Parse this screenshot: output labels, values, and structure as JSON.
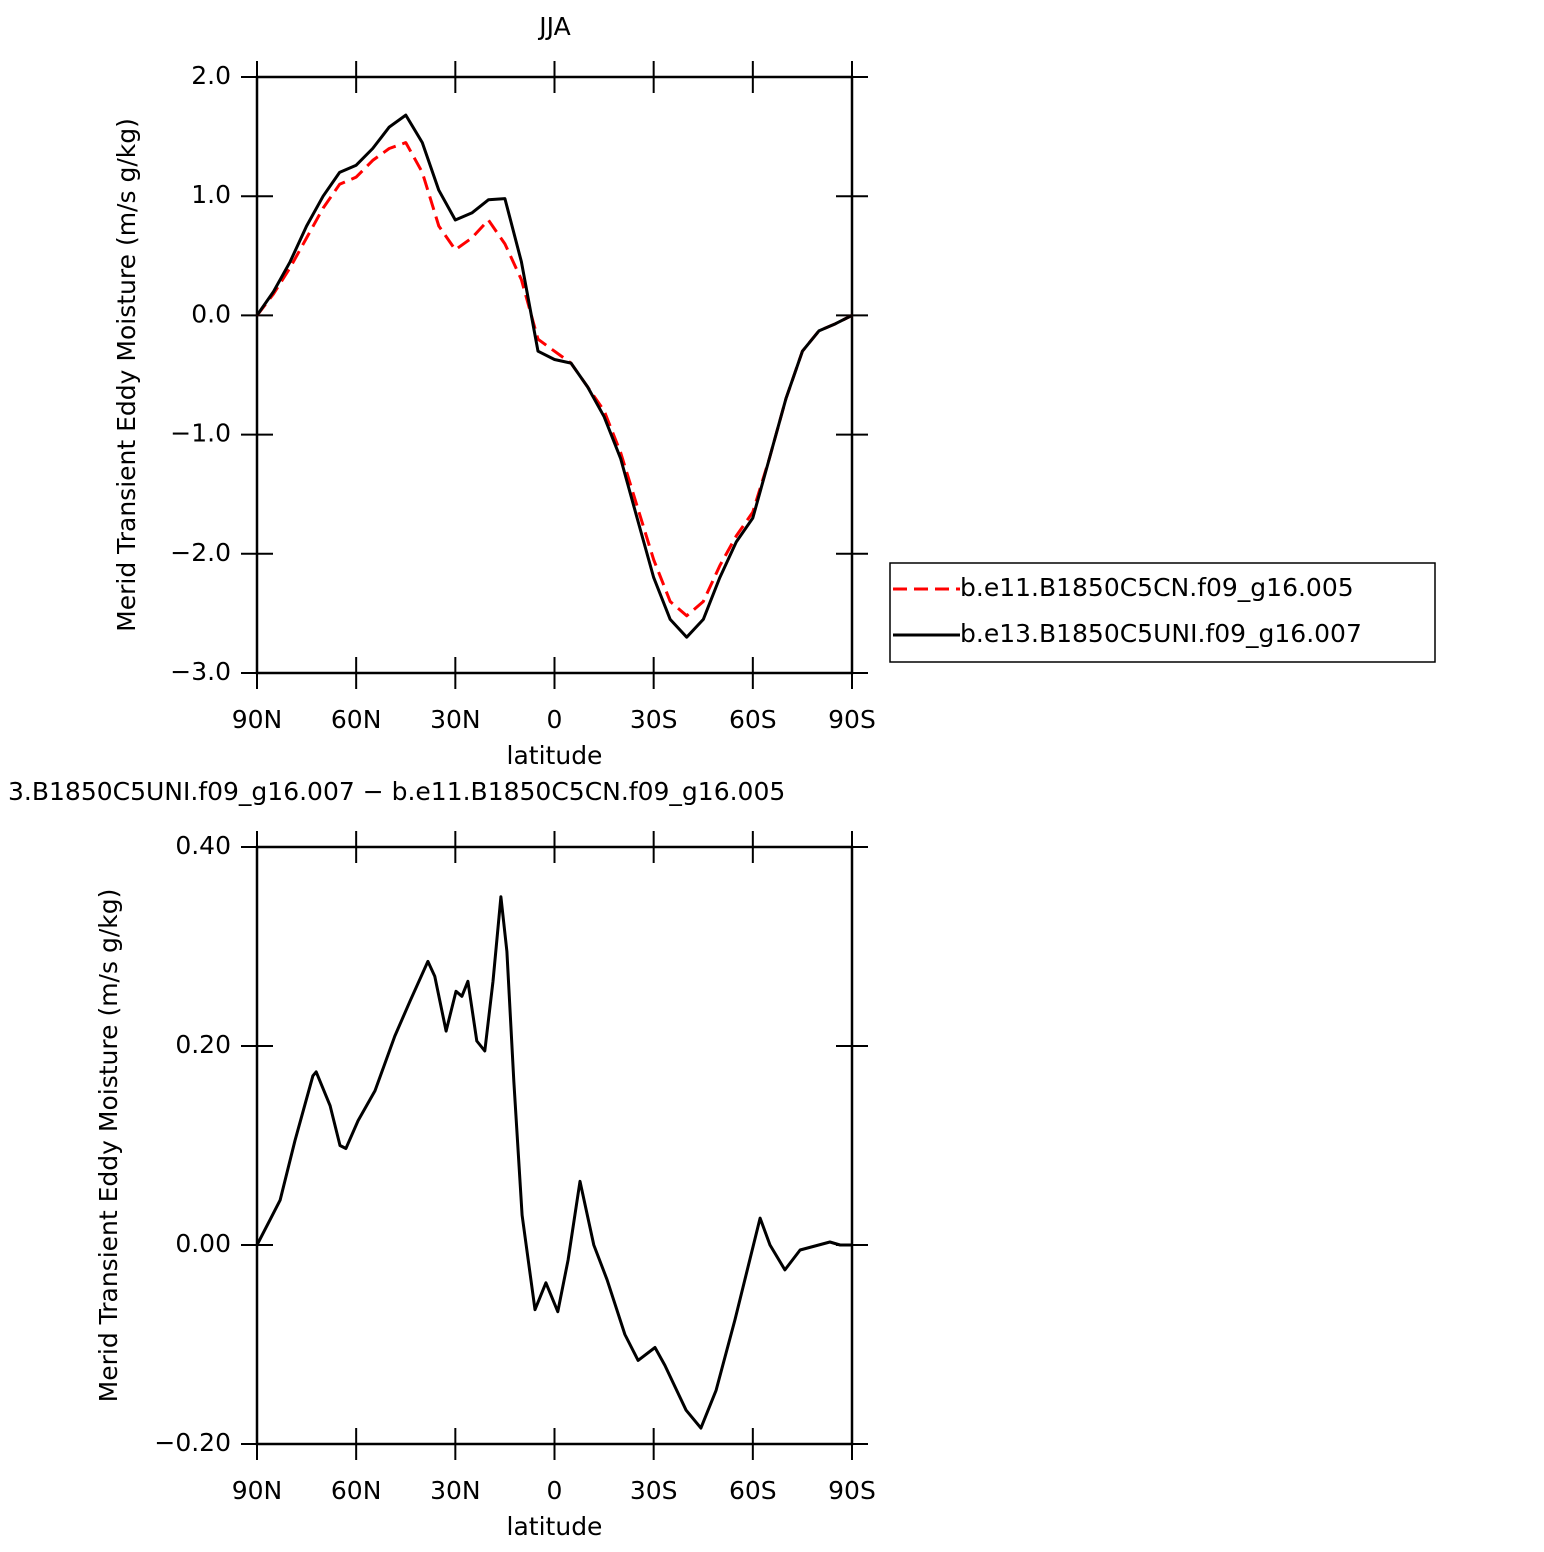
{
  "chart_data": [
    {
      "type": "line",
      "title": "JJA",
      "xlabel": "latitude",
      "ylabel": "Merid Transient Eddy Moisture (m/s g/kg)",
      "xlim": [
        90,
        -90
      ],
      "ylim": [
        -3,
        2
      ],
      "xticks": [
        {
          "value": 90,
          "label": "90N"
        },
        {
          "value": 60,
          "label": "60N"
        },
        {
          "value": 30,
          "label": "30N"
        },
        0,
        {
          "value": -30,
          "label": "30S"
        },
        {
          "value": -60,
          "label": "60S"
        },
        {
          "value": -90,
          "label": "90S"
        }
      ],
      "yticks": [
        {
          "value": -3,
          "label": "−3.0"
        },
        {
          "value": -2,
          "label": "−2.0"
        },
        {
          "value": -1,
          "label": "−1.0"
        },
        {
          "value": 0,
          "label": "0.0"
        },
        {
          "value": 1,
          "label": "1.0"
        },
        {
          "value": 2,
          "label": "2.0"
        }
      ],
      "legend": "right",
      "x": [
        90,
        85,
        80,
        75,
        70,
        65,
        60,
        55,
        50,
        45,
        40,
        35,
        30,
        25,
        20,
        15,
        10,
        5,
        0,
        -5,
        -10,
        -15,
        -20,
        -25,
        -30,
        -35,
        -40,
        -45,
        -50,
        -55,
        -60,
        -65,
        -70,
        -75,
        -80,
        -85,
        -90
      ],
      "series": [
        {
          "name": "b.e11.B1850C5CN.f09_g16.005",
          "color": "#ff0000",
          "linestyle": "dashed",
          "values": [
            0,
            0.18,
            0.4,
            0.65,
            0.9,
            1.1,
            1.16,
            1.3,
            1.4,
            1.45,
            1.2,
            0.75,
            0.55,
            0.65,
            0.8,
            0.6,
            0.3,
            -0.2,
            -0.3,
            -0.4,
            -0.6,
            -0.8,
            -1.15,
            -1.6,
            -2.05,
            -2.4,
            -2.52,
            -2.4,
            -2.1,
            -1.85,
            -1.65,
            -1.2,
            -0.7,
            -0.3,
            -0.13,
            -0.07,
            0
          ]
        },
        {
          "name": "b.e13.B1850C5UNI.f09_g16.007",
          "color": "#000000",
          "linestyle": "solid",
          "values": [
            0,
            0.2,
            0.45,
            0.75,
            1.0,
            1.2,
            1.26,
            1.4,
            1.58,
            1.68,
            1.45,
            1.05,
            0.8,
            0.86,
            0.97,
            0.98,
            0.45,
            -0.3,
            -0.37,
            -0.4,
            -0.6,
            -0.85,
            -1.2,
            -1.7,
            -2.2,
            -2.55,
            -2.7,
            -2.55,
            -2.2,
            -1.9,
            -1.7,
            -1.2,
            -0.7,
            -0.3,
            -0.13,
            -0.07,
            0
          ]
        }
      ]
    },
    {
      "type": "line",
      "title": "3.B1850C5UNI.f09_g16.007 − b.e11.B1850C5CN.f09_g16.005",
      "xlabel": "latitude",
      "ylabel": "Merid Transient Eddy Moisture (m/s g/kg)",
      "xlim": [
        90,
        -90
      ],
      "ylim": [
        -0.2,
        0.4
      ],
      "xticks": [
        {
          "value": 90,
          "label": "90N"
        },
        {
          "value": 60,
          "label": "60N"
        },
        {
          "value": 30,
          "label": "30N"
        },
        0,
        {
          "value": -30,
          "label": "30S"
        },
        {
          "value": -60,
          "label": "60S"
        },
        {
          "value": -90,
          "label": "90S"
        }
      ],
      "yticks": [
        {
          "value": -0.2,
          "label": "−0.20"
        },
        {
          "value": 0,
          "label": "0.00"
        },
        {
          "value": 0.2,
          "label": "0.20"
        },
        {
          "value": 0.4,
          "label": "0.40"
        }
      ],
      "x": [
        90,
        86.1,
        83.0,
        78.5,
        73.1,
        72.1,
        67.9,
        64.9,
        63.1,
        59.4,
        54.3,
        48.3,
        43.7,
        38.3,
        36.2,
        32.8,
        29.8,
        28.0,
        26.2,
        23.5,
        21.1,
        18.6,
        16.2,
        14.4,
        12.3,
        9.8,
        5.9,
        2.6,
        -1.0,
        -4.1,
        -7.7,
        -11.9,
        -15.9,
        -21.3,
        -25.3,
        -30.4,
        -33.4,
        -39.8,
        -44.3,
        -48.9,
        -54.6,
        -62.2,
        -65.2,
        -69.7,
        -74.3,
        -83.3,
        -86.4,
        -90
      ],
      "series": [
        {
          "color": "#000000",
          "linestyle": "solid",
          "values": [
            0,
            0.025,
            0.045,
            0.105,
            0.17,
            0.174,
            0.14,
            0.1,
            0.097,
            0.125,
            0.155,
            0.21,
            0.245,
            0.285,
            0.27,
            0.215,
            0.255,
            0.25,
            0.265,
            0.205,
            0.195,
            0.265,
            0.35,
            0.295,
            0.165,
            0.03,
            -0.065,
            -0.038,
            -0.067,
            -0.015,
            0.064,
            0,
            -0.035,
            -0.09,
            -0.116,
            -0.103,
            -0.121,
            -0.166,
            -0.184,
            -0.146,
            -0.075,
            0.027,
            0,
            -0.025,
            -0.005,
            0.003,
            0,
            0
          ]
        }
      ]
    }
  ]
}
